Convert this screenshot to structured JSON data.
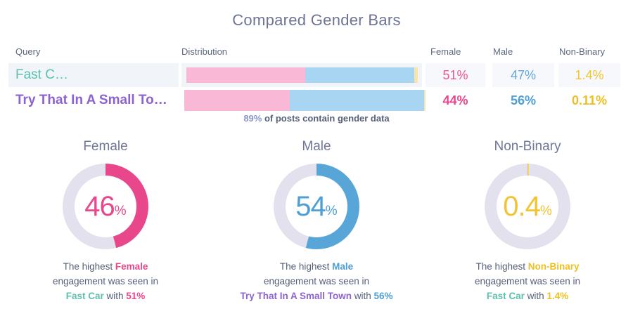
{
  "title": "Compared Gender Bars",
  "colors": {
    "title": "#6e7494",
    "header": "#5d6880",
    "body_text": "#566078",
    "note_highlight": "#8b97c9",
    "pink": "#ee5693",
    "pink_strong": "#e8478b",
    "blue": "#5fa8db",
    "blue_strong": "#4d9fd6",
    "yellow": "#f2c434",
    "yellow_strong": "#edc021",
    "teal": "#5fc0af",
    "purple": "#8c64cf",
    "donut_label": "#6f7796",
    "track": "#e3e1ee"
  },
  "table": {
    "headers": [
      "Query",
      "Distribution",
      "Female",
      "Male",
      "Non-Binary"
    ],
    "rows": [
      {
        "query": "Fast C…",
        "female": "51%",
        "male": "47%",
        "nonbinary": "1.4%"
      },
      {
        "query": "Try That In A Small To…",
        "female": "44%",
        "male": "56%",
        "nonbinary": "0.11%"
      }
    ],
    "note_highlight": "89%",
    "note_text": " of posts contain gender data"
  },
  "chart_data": [
    {
      "type": "bar",
      "subtype": "stacked-horizontal-percent",
      "title": "Compared Gender Bars",
      "categories": [
        "Fast Car",
        "Try That In A Small Town"
      ],
      "series": [
        {
          "name": "Female",
          "values": [
            51,
            44
          ],
          "color": "#f9b8d6"
        },
        {
          "name": "Male",
          "values": [
            47,
            56
          ],
          "color": "#a8d6f2"
        },
        {
          "name": "Non-Binary",
          "values": [
            1.4,
            0.11
          ],
          "color": "#fbe4a6"
        }
      ],
      "xlim": [
        0,
        100
      ],
      "note": "89% of posts contain gender data"
    },
    {
      "type": "pie",
      "subtype": "donut",
      "charts": [
        {
          "label": "Female",
          "value": 46,
          "color": "#e8478b"
        },
        {
          "label": "Male",
          "value": 54,
          "color": "#58a5d8"
        },
        {
          "label": "Non-Binary",
          "value": 0.4,
          "color": "#f1c232"
        }
      ]
    }
  ],
  "donut_cards": [
    {
      "label": "Female",
      "display": "46",
      "unit": "%",
      "line1_prefix": "The highest ",
      "line1_term": "Female",
      "line2": "engagement was seen in",
      "line3_term": "Fast Car",
      "line3_mid": " with ",
      "line3_value": "51%"
    },
    {
      "label": "Male",
      "display": "54",
      "unit": "%",
      "line1_prefix": "The highest ",
      "line1_term": "Male",
      "line2": "engagement was seen in",
      "line3_term": "Try That In A Small Town",
      "line3_mid": " with ",
      "line3_value": "56%"
    },
    {
      "label": "Non-Binary",
      "display": "0.4",
      "unit": "%",
      "line1_prefix": "The highest ",
      "line1_term": "Non-Binary",
      "line2": "engagement was seen in",
      "line3_term": "Fast Car",
      "line3_mid": " with ",
      "line3_value": "1.4%"
    }
  ]
}
